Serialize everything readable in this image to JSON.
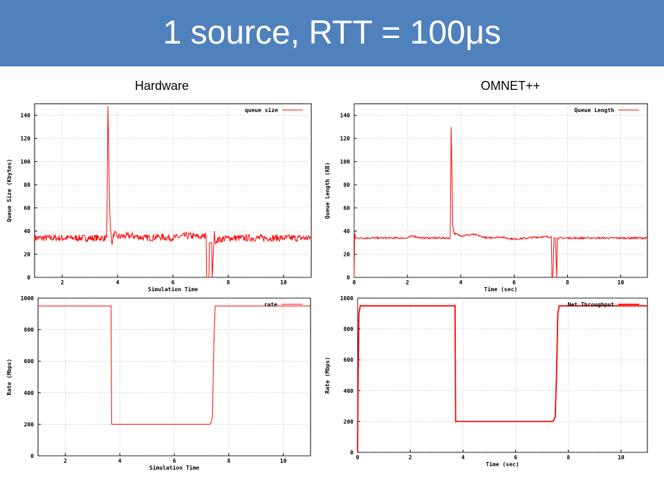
{
  "slide": {
    "title": "1 source, RTT = 100μs",
    "title_bar_color": "#4f81bd",
    "columns": [
      "Hardware",
      "OMNET++"
    ]
  },
  "chart_data": [
    {
      "id": "hw-queue",
      "type": "line",
      "xlabel": "Simulation Time",
      "ylabel": "Queue Size (Kbytes)",
      "xlim": [
        1,
        11
      ],
      "ylim": [
        0,
        150
      ],
      "xticks": [
        2,
        4,
        6,
        8,
        10
      ],
      "yticks": [
        0,
        20,
        40,
        60,
        80,
        100,
        120,
        140
      ],
      "grid": true,
      "legend_position": "top-right",
      "series": [
        {
          "name": "queue size",
          "color": "#ff0000",
          "noise": 3,
          "x": [
            1.0,
            3.6,
            3.62,
            3.65,
            3.67,
            3.7,
            3.72,
            3.75,
            3.8,
            3.85,
            4.0,
            4.5,
            5.0,
            5.5,
            6.0,
            6.5,
            7.0,
            7.2,
            7.22,
            7.3,
            7.32,
            7.4,
            7.42,
            7.5,
            7.52,
            8.0,
            9.0,
            10.0,
            11.0
          ],
          "y": [
            34,
            34,
            55,
            148,
            120,
            80,
            55,
            40,
            28,
            38,
            35,
            36,
            34,
            35,
            34,
            36,
            35,
            36,
            0,
            0,
            30,
            30,
            0,
            40,
            32,
            34,
            34,
            34,
            34
          ]
        }
      ]
    },
    {
      "id": "om-queue",
      "type": "line",
      "xlabel": "Time (sec)",
      "ylabel": "Queue Length (KB)",
      "xlim": [
        0,
        11
      ],
      "ylim": [
        0,
        150
      ],
      "xticks": [
        0,
        2,
        4,
        6,
        8,
        10
      ],
      "yticks": [
        0,
        20,
        40,
        60,
        80,
        100,
        120,
        140
      ],
      "grid": true,
      "legend_position": "top-right",
      "series": [
        {
          "name": "Queue Length",
          "color": "#ff0000",
          "noise": 0.8,
          "x": [
            0.0,
            0.02,
            0.05,
            0.1,
            2.0,
            2.2,
            2.5,
            3.6,
            3.62,
            3.64,
            3.66,
            3.7,
            3.75,
            4.0,
            4.5,
            5.0,
            5.5,
            6.0,
            6.5,
            7.0,
            7.4,
            7.42,
            7.45,
            7.5,
            7.55,
            7.6,
            7.62,
            8.0,
            9.0,
            10.0,
            11.0
          ],
          "y": [
            0,
            38,
            34,
            34,
            34,
            36,
            34,
            34,
            70,
            130,
            100,
            45,
            38,
            36,
            37,
            34,
            35,
            33,
            34,
            35,
            35,
            0,
            0,
            34,
            34,
            0,
            34,
            34,
            34,
            34,
            34
          ]
        }
      ]
    },
    {
      "id": "hw-rate",
      "type": "line",
      "xlabel": "Simulation Time",
      "ylabel": "Rate (Mbps)",
      "xlim": [
        1,
        11
      ],
      "ylim": [
        0,
        1000
      ],
      "xticks": [
        2,
        4,
        6,
        8,
        10
      ],
      "yticks": [
        0,
        200,
        400,
        600,
        800,
        1000
      ],
      "grid": true,
      "legend_position": "top-right",
      "series": [
        {
          "name": "rate",
          "color": "#ff0000",
          "noise": 0,
          "x": [
            1.0,
            3.68,
            3.7,
            7.3,
            7.35,
            7.4,
            7.45,
            7.5,
            11.0
          ],
          "y": [
            950,
            950,
            200,
            200,
            210,
            250,
            700,
            950,
            950
          ]
        }
      ]
    },
    {
      "id": "om-rate",
      "type": "line",
      "xlabel": "Time (sec)",
      "ylabel": "Rate (Mbps)",
      "xlim": [
        0,
        11
      ],
      "ylim": [
        0,
        1000
      ],
      "xticks": [
        0,
        2,
        4,
        6,
        8,
        10
      ],
      "yticks": [
        0,
        200,
        400,
        600,
        800,
        1000
      ],
      "grid": true,
      "legend_position": "top-right",
      "series": [
        {
          "name": "Net Throughput",
          "color": "#ff0000",
          "noise": 0,
          "x": [
            0.0,
            0.02,
            0.05,
            0.1,
            3.7,
            3.72,
            7.4,
            7.45,
            7.5,
            7.55,
            7.6,
            7.65,
            11.0
          ],
          "y": [
            0,
            500,
            900,
            950,
            950,
            200,
            200,
            210,
            230,
            500,
            900,
            950,
            950
          ]
        }
      ]
    }
  ]
}
